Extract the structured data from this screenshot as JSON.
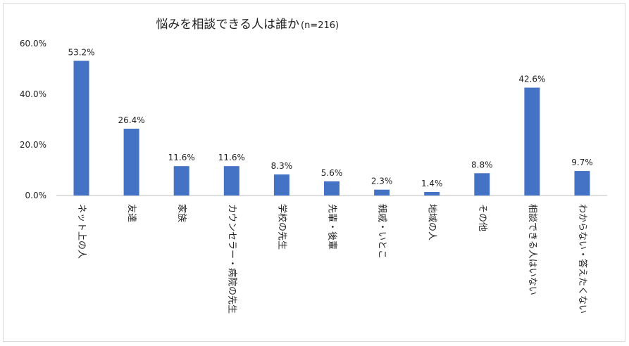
{
  "chart_data": {
    "type": "bar",
    "title": "悩みを相談できる人は誰か",
    "subtitle": "(n=216)",
    "categories": [
      "ネット上の人",
      "友達",
      "家族",
      "カウンセラー・病院の先生",
      "学校の先生",
      "先輩・後輩",
      "親戚・いとこ",
      "地域の人",
      "その他",
      "相談できる人はいない",
      "わからない・答えたくない"
    ],
    "values": [
      53.2,
      26.4,
      11.6,
      11.6,
      8.3,
      5.6,
      2.3,
      1.4,
      8.8,
      42.6,
      9.7
    ],
    "data_labels": [
      "53.2%",
      "26.4%",
      "11.6%",
      "11.6%",
      "8.3%",
      "5.6%",
      "2.3%",
      "1.4%",
      "8.8%",
      "42.6%",
      "9.7%"
    ],
    "y_ticks": [
      "0.0%",
      "20.0%",
      "40.0%",
      "60.0%"
    ],
    "ylim": [
      0,
      60
    ],
    "xlabel": "",
    "ylabel": "",
    "grid": false,
    "bar_color": "#4472c4"
  }
}
